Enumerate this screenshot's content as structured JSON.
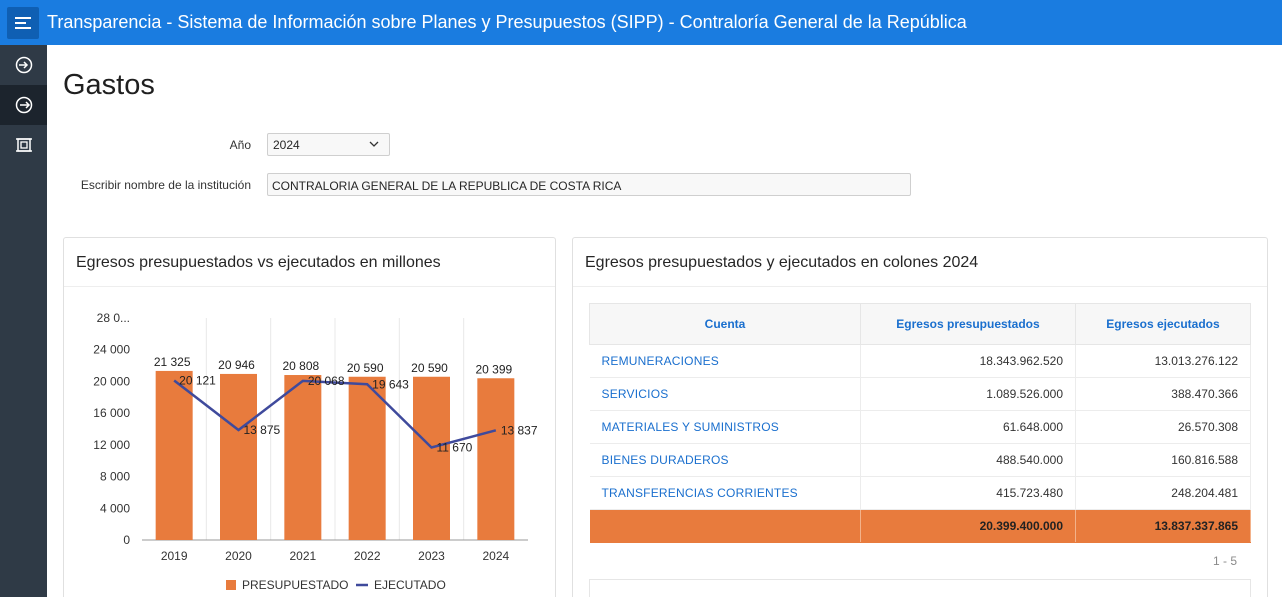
{
  "header": {
    "title": "Transparencia - Sistema de Información sobre Planes y Presupuestos (SIPP) - Contraloría General de la República",
    "icons": [
      "hamburger-icon"
    ]
  },
  "sidebar": {
    "items": [
      {
        "icon": "sign-in-icon",
        "active": false
      },
      {
        "icon": "sign-out-icon",
        "active": true
      },
      {
        "icon": "institution-icon",
        "active": false
      }
    ]
  },
  "page": {
    "title": "Gastos"
  },
  "filters": {
    "year_label": "Año",
    "year_value": "2024",
    "institution_label": "Escribir nombre de la institución",
    "institution_value": "CONTRALORIA GENERAL DE LA REPUBLICA DE COSTA RICA"
  },
  "chart_card": {
    "title": "Egresos presupuestados vs ejecutados en millones"
  },
  "chart_data": {
    "type": "bar",
    "categories": [
      "2019",
      "2020",
      "2021",
      "2022",
      "2023",
      "2024"
    ],
    "series": [
      {
        "name": "PRESUPUESTADO",
        "type": "bar",
        "values": [
          21325,
          20946,
          20808,
          20590,
          20590,
          20399
        ],
        "labels": [
          "21 325",
          "20 946",
          "20 808",
          "20 590",
          "20 590",
          "20 399"
        ]
      },
      {
        "name": "EJECUTADO",
        "type": "line",
        "values": [
          20121,
          13875,
          20068,
          19643,
          11670,
          13837
        ],
        "labels": [
          "20 121",
          "13 875",
          "20 068",
          "19 643",
          "11 670",
          "13 837"
        ]
      }
    ],
    "yticks": [
      "0",
      "4 000",
      "8 000",
      "12 000",
      "16 000",
      "20 000",
      "24 000",
      "28 0..."
    ],
    "ylim": [
      0,
      28000
    ],
    "legend": "bottom",
    "grid": true,
    "colors": {
      "bar": "#e87b3d",
      "line": "#3f4a9c"
    }
  },
  "table_card": {
    "title": "Egresos presupuestados y ejecutados en colones 2024",
    "columns": [
      "Cuenta",
      "Egresos presupuestados",
      "Egresos ejecutados"
    ],
    "rows": [
      {
        "cuenta": "REMUNERACIONES",
        "presupuestado": "18.343.962.520",
        "ejecutado": "13.013.276.122"
      },
      {
        "cuenta": "SERVICIOS",
        "presupuestado": "1.089.526.000",
        "ejecutado": "388.470.366"
      },
      {
        "cuenta": "MATERIALES Y SUMINISTROS",
        "presupuestado": "61.648.000",
        "ejecutado": "26.570.308"
      },
      {
        "cuenta": "BIENES DURADEROS",
        "presupuestado": "488.540.000",
        "ejecutado": "160.816.588"
      },
      {
        "cuenta": "TRANSFERENCIAS CORRIENTES",
        "presupuestado": "415.723.480",
        "ejecutado": "248.204.481"
      }
    ],
    "total": {
      "presupuestado": "20.399.400.000",
      "ejecutado": "13.837.337.865"
    },
    "pagination": "1 - 5"
  }
}
